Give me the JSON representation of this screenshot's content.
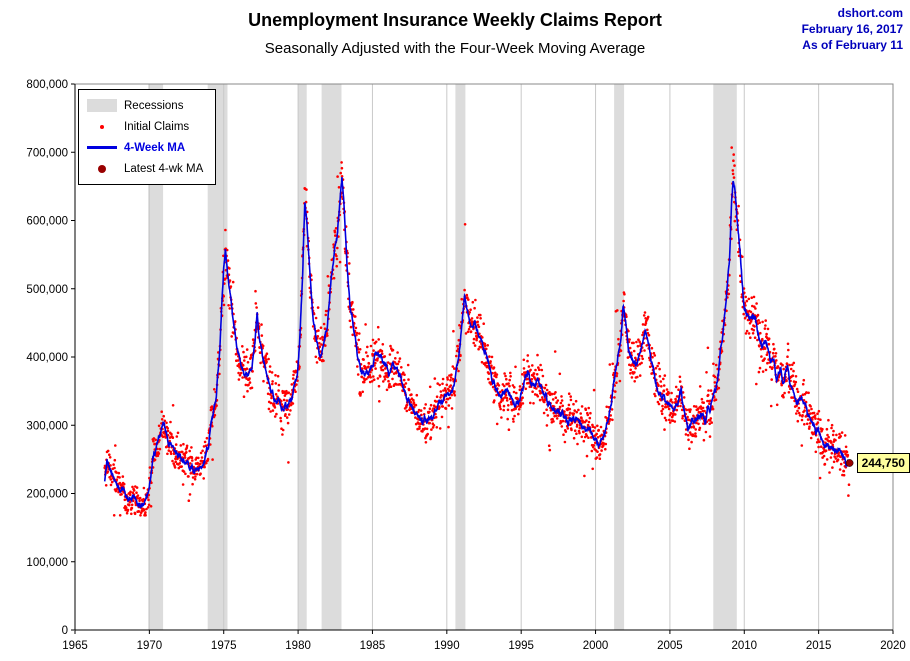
{
  "header": {
    "title": "Unemployment Insurance Weekly Claims Report",
    "subtitle": "Seasonally Adjusted with the Four-Week Moving Average",
    "source": "dshort.com",
    "date": "February 16, 2017",
    "as_of": "As of February 11"
  },
  "legend": {
    "recessions": "Recessions",
    "initial_claims": "Initial Claims",
    "four_week_ma": "4-Week MA",
    "latest_ma": "Latest 4-wk MA"
  },
  "callout": {
    "label": "244,750"
  },
  "colors": {
    "initial_claims": "#ff0000",
    "ma_line": "#0000e0",
    "latest_dot": "#990000",
    "recession_band": "#dcdcdc",
    "gridline": "#c9c9c9",
    "stamp_blue": "#0000bb",
    "callout_bg": "#ffff9e",
    "axis": "#000000"
  },
  "chart_data": {
    "type": "line",
    "title": "Unemployment Insurance Weekly Claims Report",
    "subtitle": "Seasonally Adjusted with the Four-Week Moving Average",
    "xlabel": "",
    "ylabel": "",
    "xlim": [
      1965,
      2020
    ],
    "ylim": [
      0,
      800000
    ],
    "x_ticks": [
      1965,
      1970,
      1975,
      1980,
      1985,
      1990,
      1995,
      2000,
      2005,
      2010,
      2015,
      2020
    ],
    "y_ticks": [
      0,
      100000,
      200000,
      300000,
      400000,
      500000,
      600000,
      700000,
      800000
    ],
    "grid": "vertical",
    "legend_position": "top-left",
    "recessions": [
      [
        1969.92,
        1970.92
      ],
      [
        1973.92,
        1975.25
      ],
      [
        1980.0,
        1980.58
      ],
      [
        1981.58,
        1982.92
      ],
      [
        1990.58,
        1991.25
      ],
      [
        2001.25,
        2001.92
      ],
      [
        2007.92,
        2009.5
      ]
    ],
    "latest": {
      "x": 2017.08,
      "y": 244750,
      "label": "244,750"
    },
    "note": "Initial Claims are weekly values scattered tightly around the 4-Week MA; MA series below is read off the plotted line.",
    "series": [
      {
        "name": "4-Week MA",
        "type": "line",
        "points": [
          [
            1967.0,
            215000
          ],
          [
            1967.15,
            255000
          ],
          [
            1967.3,
            240000
          ],
          [
            1967.5,
            225000
          ],
          [
            1967.8,
            215000
          ],
          [
            1968.1,
            205000
          ],
          [
            1968.4,
            198000
          ],
          [
            1968.8,
            192000
          ],
          [
            1969.2,
            185000
          ],
          [
            1969.6,
            183000
          ],
          [
            1969.95,
            205000
          ],
          [
            1970.2,
            240000
          ],
          [
            1970.5,
            270000
          ],
          [
            1970.8,
            295000
          ],
          [
            1971.0,
            298000
          ],
          [
            1971.2,
            282000
          ],
          [
            1971.5,
            268000
          ],
          [
            1971.8,
            262000
          ],
          [
            1972.1,
            252000
          ],
          [
            1972.4,
            245000
          ],
          [
            1972.8,
            238000
          ],
          [
            1973.1,
            230000
          ],
          [
            1973.4,
            238000
          ],
          [
            1973.7,
            245000
          ],
          [
            1973.95,
            265000
          ],
          [
            1974.2,
            310000
          ],
          [
            1974.5,
            345000
          ],
          [
            1974.75,
            420000
          ],
          [
            1975.0,
            530000
          ],
          [
            1975.12,
            558000
          ],
          [
            1975.3,
            520000
          ],
          [
            1975.5,
            480000
          ],
          [
            1975.7,
            440000
          ],
          [
            1975.9,
            415000
          ],
          [
            1976.1,
            395000
          ],
          [
            1976.4,
            375000
          ],
          [
            1976.7,
            372000
          ],
          [
            1976.9,
            390000
          ],
          [
            1977.1,
            420000
          ],
          [
            1977.25,
            465000
          ],
          [
            1977.4,
            430000
          ],
          [
            1977.6,
            400000
          ],
          [
            1977.85,
            378000
          ],
          [
            1978.1,
            355000
          ],
          [
            1978.4,
            342000
          ],
          [
            1978.7,
            335000
          ],
          [
            1979.0,
            325000
          ],
          [
            1979.3,
            330000
          ],
          [
            1979.6,
            340000
          ],
          [
            1979.9,
            372000
          ],
          [
            1980.1,
            420000
          ],
          [
            1980.3,
            520000
          ],
          [
            1980.45,
            622000
          ],
          [
            1980.6,
            590000
          ],
          [
            1980.8,
            520000
          ],
          [
            1981.0,
            462000
          ],
          [
            1981.2,
            425000
          ],
          [
            1981.45,
            405000
          ],
          [
            1981.7,
            415000
          ],
          [
            1981.95,
            445000
          ],
          [
            1982.2,
            510000
          ],
          [
            1982.45,
            555000
          ],
          [
            1982.65,
            580000
          ],
          [
            1982.85,
            640000
          ],
          [
            1982.95,
            668000
          ],
          [
            1983.1,
            620000
          ],
          [
            1983.3,
            530000
          ],
          [
            1983.5,
            475000
          ],
          [
            1983.75,
            440000
          ],
          [
            1984.0,
            398000
          ],
          [
            1984.3,
            378000
          ],
          [
            1984.6,
            372000
          ],
          [
            1984.9,
            382000
          ],
          [
            1985.1,
            395000
          ],
          [
            1985.35,
            405000
          ],
          [
            1985.6,
            398000
          ],
          [
            1985.85,
            388000
          ],
          [
            1986.1,
            378000
          ],
          [
            1986.35,
            390000
          ],
          [
            1986.6,
            385000
          ],
          [
            1986.9,
            368000
          ],
          [
            1987.2,
            348000
          ],
          [
            1987.5,
            332000
          ],
          [
            1987.8,
            320000
          ],
          [
            1988.1,
            312000
          ],
          [
            1988.4,
            306000
          ],
          [
            1988.7,
            308000
          ],
          [
            1989.0,
            312000
          ],
          [
            1989.3,
            325000
          ],
          [
            1989.6,
            332000
          ],
          [
            1989.9,
            340000
          ],
          [
            1990.2,
            345000
          ],
          [
            1990.5,
            358000
          ],
          [
            1990.75,
            392000
          ],
          [
            1991.0,
            445000
          ],
          [
            1991.2,
            495000
          ],
          [
            1991.35,
            475000
          ],
          [
            1991.5,
            455000
          ],
          [
            1991.7,
            442000
          ],
          [
            1991.9,
            450000
          ],
          [
            1992.1,
            440000
          ],
          [
            1992.3,
            420000
          ],
          [
            1992.6,
            405000
          ],
          [
            1992.9,
            385000
          ],
          [
            1993.1,
            362000
          ],
          [
            1993.4,
            348000
          ],
          [
            1993.7,
            342000
          ],
          [
            1994.0,
            352000
          ],
          [
            1994.3,
            340000
          ],
          [
            1994.6,
            330000
          ],
          [
            1994.9,
            338000
          ],
          [
            1995.2,
            360000
          ],
          [
            1995.45,
            378000
          ],
          [
            1995.7,
            362000
          ],
          [
            1995.95,
            358000
          ],
          [
            1996.2,
            368000
          ],
          [
            1996.45,
            352000
          ],
          [
            1996.7,
            340000
          ],
          [
            1997.0,
            328000
          ],
          [
            1997.3,
            320000
          ],
          [
            1997.6,
            315000
          ],
          [
            1997.9,
            308000
          ],
          [
            1998.2,
            304000
          ],
          [
            1998.5,
            312000
          ],
          [
            1998.8,
            308000
          ],
          [
            1999.1,
            300000
          ],
          [
            1999.4,
            292000
          ],
          [
            1999.7,
            288000
          ],
          [
            2000.0,
            278000
          ],
          [
            2000.25,
            270000
          ],
          [
            2000.5,
            282000
          ],
          [
            2000.75,
            295000
          ],
          [
            2001.0,
            330000
          ],
          [
            2001.25,
            368000
          ],
          [
            2001.5,
            398000
          ],
          [
            2001.7,
            420000
          ],
          [
            2001.85,
            475000
          ],
          [
            2002.0,
            450000
          ],
          [
            2002.2,
            415000
          ],
          [
            2002.45,
            398000
          ],
          [
            2002.7,
            392000
          ],
          [
            2002.95,
            405000
          ],
          [
            2003.15,
            420000
          ],
          [
            2003.35,
            438000
          ],
          [
            2003.55,
            420000
          ],
          [
            2003.8,
            392000
          ],
          [
            2004.05,
            362000
          ],
          [
            2004.3,
            348000
          ],
          [
            2004.6,
            340000
          ],
          [
            2004.9,
            332000
          ],
          [
            2005.2,
            324000
          ],
          [
            2005.5,
            332000
          ],
          [
            2005.75,
            348000
          ],
          [
            2005.95,
            320000
          ],
          [
            2006.2,
            298000
          ],
          [
            2006.5,
            305000
          ],
          [
            2006.8,
            312000
          ],
          [
            2007.1,
            318000
          ],
          [
            2007.4,
            308000
          ],
          [
            2007.7,
            322000
          ],
          [
            2007.95,
            342000
          ],
          [
            2008.2,
            368000
          ],
          [
            2008.5,
            420000
          ],
          [
            2008.75,
            478000
          ],
          [
            2009.0,
            548000
          ],
          [
            2009.15,
            628000
          ],
          [
            2009.25,
            657000
          ],
          [
            2009.4,
            635000
          ],
          [
            2009.6,
            585000
          ],
          [
            2009.8,
            532000
          ],
          [
            2010.0,
            472000
          ],
          [
            2010.2,
            462000
          ],
          [
            2010.45,
            458000
          ],
          [
            2010.7,
            462000
          ],
          [
            2010.95,
            435000
          ],
          [
            2011.2,
            412000
          ],
          [
            2011.45,
            425000
          ],
          [
            2011.7,
            408000
          ],
          [
            2011.95,
            388000
          ],
          [
            2012.2,
            372000
          ],
          [
            2012.45,
            380000
          ],
          [
            2012.7,
            362000
          ],
          [
            2012.9,
            388000
          ],
          [
            2013.1,
            358000
          ],
          [
            2013.35,
            345000
          ],
          [
            2013.6,
            332000
          ],
          [
            2013.85,
            342000
          ],
          [
            2014.1,
            330000
          ],
          [
            2014.35,
            315000
          ],
          [
            2014.6,
            302000
          ],
          [
            2014.85,
            292000
          ],
          [
            2015.1,
            285000
          ],
          [
            2015.35,
            275000
          ],
          [
            2015.6,
            272000
          ],
          [
            2015.85,
            268000
          ],
          [
            2016.1,
            262000
          ],
          [
            2016.35,
            266000
          ],
          [
            2016.6,
            256000
          ],
          [
            2016.85,
            250000
          ],
          [
            2017.0,
            247000
          ],
          [
            2017.08,
            244750
          ]
        ]
      },
      {
        "name": "Initial Claims",
        "type": "scatter"
      }
    ]
  }
}
